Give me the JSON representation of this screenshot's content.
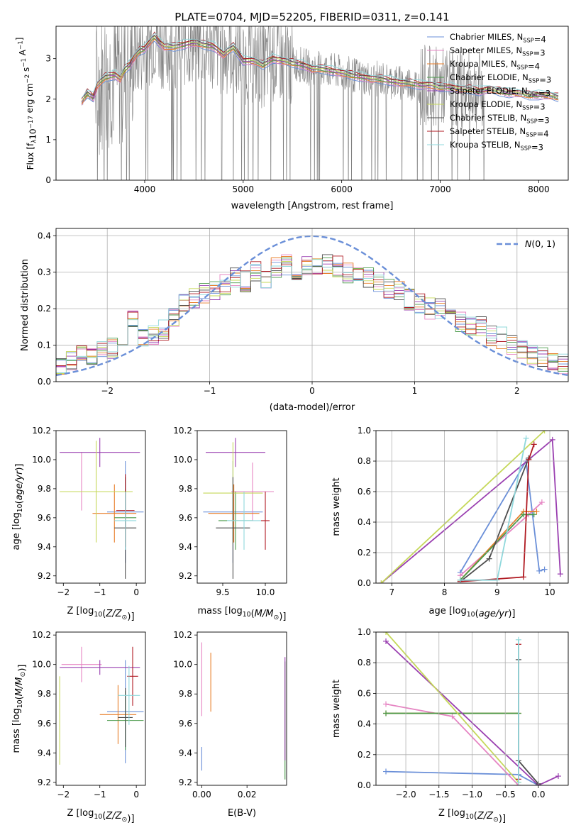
{
  "figure": {
    "title": "PLATE=0704, MJD=52205, FIBERID=0311, z=0.141"
  },
  "series_colors": [
    "#6a8fd8",
    "#e685c3",
    "#e87e29",
    "#4a9a4a",
    "#9a3fb0",
    "#c5d85a",
    "#4d4d4d",
    "#b01a22",
    "#8fd8dc"
  ],
  "chart_data": [
    {
      "id": "spectrum",
      "type": "line",
      "xlabel": "wavelength [Angstrom, rest frame]",
      "ylabel": "Flux [f_λ 10^-17 erg cm^-2 s^-1 A^-1]",
      "xlim": [
        3100,
        8300
      ],
      "ylim": [
        0,
        3.8
      ],
      "xticks": [
        4000,
        5000,
        6000,
        7000,
        8000
      ],
      "yticks": [
        0,
        1,
        2,
        3
      ],
      "grid": false,
      "legend_position": "right",
      "legend": [
        "Chabrier MILES, N_SSP=4",
        "Salpeter MILES, N_SSP=3",
        "Kroupa MILES, N_SSP=4",
        "Chabrier ELODIE, N_SSP=3",
        "Salpeter ELODIE, N_SSP=3",
        "Kroupa ELODIE, N_SSP=3",
        "Chabrier STELIB, N_SSP=3",
        "Salpeter STELIB, N_SSP=4",
        "Kroupa STELIB, N_SSP=3"
      ],
      "model_points": {
        "x": [
          3360,
          3420,
          3480,
          3520,
          3600,
          3700,
          3750,
          3800,
          3850,
          3900,
          3950,
          4000,
          4050,
          4100,
          4150,
          4200,
          4300,
          4400,
          4500,
          4600,
          4700,
          4800,
          4900,
          5000,
          5100,
          5200,
          5300,
          5400,
          5500,
          5600,
          5700,
          5800,
          5900,
          6000,
          6100,
          6200,
          6300,
          6400,
          6500,
          6600,
          6700,
          6800,
          6900,
          7000,
          7100,
          7200,
          7300,
          7400,
          7500,
          7600,
          7700,
          7800,
          7900,
          8000,
          8100,
          8200
        ],
        "y": [
          1.95,
          2.15,
          2.05,
          2.35,
          2.55,
          2.6,
          2.5,
          2.75,
          2.85,
          3.05,
          3.2,
          3.25,
          3.4,
          3.55,
          3.4,
          3.3,
          3.3,
          3.35,
          3.4,
          3.35,
          3.3,
          3.1,
          3.3,
          2.95,
          2.95,
          2.85,
          3.0,
          2.95,
          2.9,
          2.85,
          2.75,
          2.75,
          2.7,
          2.65,
          2.6,
          2.55,
          2.5,
          2.5,
          2.45,
          2.4,
          2.4,
          2.35,
          2.35,
          2.3,
          2.3,
          2.25,
          2.25,
          2.2,
          2.25,
          2.2,
          2.15,
          2.15,
          2.1,
          2.1,
          2.1,
          2.05
        ]
      }
    },
    {
      "id": "residuals",
      "type": "line",
      "xlabel": "(data-model)/error",
      "ylabel": "Normed distribution",
      "xlim": [
        -2.5,
        2.5
      ],
      "ylim": [
        0,
        0.42
      ],
      "xticks": [
        -2,
        -1,
        0,
        1,
        2
      ],
      "yticks": [
        0.0,
        0.1,
        0.2,
        0.3,
        0.4
      ],
      "grid": true,
      "legend_position": "top-right",
      "legend": [
        "N(0,1)"
      ],
      "bin_centers": [
        -2.45,
        -2.35,
        -2.25,
        -2.15,
        -2.05,
        -1.95,
        -1.85,
        -1.75,
        -1.65,
        -1.55,
        -1.45,
        -1.35,
        -1.25,
        -1.15,
        -1.05,
        -0.95,
        -0.85,
        -0.75,
        -0.65,
        -0.55,
        -0.45,
        -0.35,
        -0.25,
        -0.15,
        -0.05,
        0.05,
        0.15,
        0.25,
        0.35,
        0.45,
        0.55,
        0.65,
        0.75,
        0.85,
        0.95,
        1.05,
        1.15,
        1.25,
        1.35,
        1.45,
        1.55,
        1.65,
        1.75,
        1.85,
        1.95,
        2.05,
        2.15,
        2.25,
        2.35,
        2.45
      ],
      "bin_values": [
        0.05,
        0.055,
        0.07,
        0.075,
        0.085,
        0.09,
        0.12,
        0.165,
        0.125,
        0.13,
        0.14,
        0.175,
        0.21,
        0.23,
        0.24,
        0.245,
        0.265,
        0.285,
        0.275,
        0.3,
        0.28,
        0.31,
        0.32,
        0.305,
        0.32,
        0.315,
        0.325,
        0.315,
        0.3,
        0.29,
        0.285,
        0.275,
        0.255,
        0.245,
        0.225,
        0.215,
        0.2,
        0.2,
        0.175,
        0.165,
        0.155,
        0.15,
        0.125,
        0.12,
        0.1,
        0.085,
        0.075,
        0.065,
        0.05,
        0.05
      ]
    },
    {
      "id": "z-vs-age",
      "type": "scatter",
      "xlabel": "Z [log10(Z/Z☉)]",
      "ylabel": "age  [log10(age/yr)]",
      "xlim": [
        -2.2,
        0.25
      ],
      "ylim": [
        9.15,
        10.2
      ],
      "xticks": [
        -2,
        -1,
        0
      ],
      "yticks": [
        9.2,
        9.4,
        9.6,
        9.8,
        10.0,
        10.2
      ],
      "points": [
        {
          "x": -0.3,
          "y": 9.64,
          "xerr": 0.5,
          "yerr": 0.35
        },
        {
          "x": -1.5,
          "y": 9.85,
          "xerr": 0.0,
          "yerr": 0.2
        },
        {
          "x": -0.6,
          "y": 9.63,
          "xerr": 0.6,
          "yerr": 0.2
        },
        {
          "x": -0.3,
          "y": 9.6,
          "xerr": 0.3,
          "yerr": 0.2
        },
        {
          "x": -1.0,
          "y": 10.05,
          "xerr": 1.1,
          "yerr": 0.1
        },
        {
          "x": -1.1,
          "y": 9.78,
          "xerr": 1.0,
          "yerr": 0.35
        },
        {
          "x": -0.3,
          "y": 9.53,
          "xerr": 0.3,
          "yerr": 0.35
        },
        {
          "x": -0.3,
          "y": 9.65,
          "xerr": 0.25,
          "yerr": 0.25
        },
        {
          "x": -0.3,
          "y": 9.58,
          "xerr": 0.3,
          "yerr": 0.2
        }
      ]
    },
    {
      "id": "mass-vs-age",
      "type": "scatter",
      "xlabel": "mass [log10(M/M☉)]",
      "ylabel": "",
      "xlim": [
        9.2,
        10.25
      ],
      "ylim": [
        9.15,
        10.2
      ],
      "xticks": [
        9.5,
        10.0
      ],
      "yticks": [
        9.2,
        9.4,
        9.6,
        9.8,
        10.0,
        10.2
      ],
      "points": [
        {
          "x": 9.62,
          "y": 9.64,
          "xerr": 0.35,
          "yerr": 0.35
        },
        {
          "x": 9.85,
          "y": 9.78,
          "xerr": 0.25,
          "yerr": 0.2
        },
        {
          "x": 9.63,
          "y": 9.63,
          "xerr": 0.3,
          "yerr": 0.2
        },
        {
          "x": 9.65,
          "y": 9.58,
          "xerr": 0.2,
          "yerr": 0.2
        },
        {
          "x": 9.65,
          "y": 10.05,
          "xerr": 0.35,
          "yerr": 0.1
        },
        {
          "x": 9.62,
          "y": 9.77,
          "xerr": 0.35,
          "yerr": 0.35
        },
        {
          "x": 9.62,
          "y": 9.53,
          "xerr": 0.2,
          "yerr": 0.35
        },
        {
          "x": 10.0,
          "y": 9.58,
          "xerr": 0.05,
          "yerr": 0.2
        },
        {
          "x": 9.75,
          "y": 9.58,
          "xerr": 0.2,
          "yerr": 0.2
        }
      ]
    },
    {
      "id": "age-vs-mass-weight",
      "type": "line",
      "xlabel": "age  [log10(age/yr)]",
      "ylabel": "mass weight",
      "xlim": [
        6.7,
        10.35
      ],
      "ylim": [
        0,
        1.0
      ],
      "xticks": [
        7,
        8,
        9,
        10
      ],
      "yticks": [
        0.0,
        0.2,
        0.4,
        0.6,
        0.8,
        1.0
      ],
      "grid": true,
      "series": [
        {
          "x": [
            8.3,
            9.55,
            9.8,
            9.9
          ],
          "y": [
            0.07,
            0.8,
            0.08,
            0.09
          ]
        },
        {
          "x": [
            8.3,
            9.6,
            9.85
          ],
          "y": [
            0.05,
            0.45,
            0.53
          ]
        },
        {
          "x": [
            8.3,
            9.5,
            9.75
          ],
          "y": [
            0.02,
            0.47,
            0.47
          ]
        },
        {
          "x": [
            8.3,
            9.5,
            9.7
          ],
          "y": [
            0.02,
            0.45,
            0.45
          ]
        },
        {
          "x": [
            6.8,
            10.05,
            10.2
          ],
          "y": [
            0.0,
            0.94,
            0.06
          ]
        },
        {
          "x": [
            6.8,
            9.9
          ],
          "y": [
            0.0,
            1.0
          ]
        },
        {
          "x": [
            8.3,
            8.85,
            9.6
          ],
          "y": [
            0.01,
            0.16,
            0.82
          ]
        },
        {
          "x": [
            8.3,
            9.5,
            9.6,
            9.7
          ],
          "y": [
            0.01,
            0.04,
            0.81,
            0.91
          ]
        },
        {
          "x": [
            8.3,
            9.0,
            9.55
          ],
          "y": [
            0.02,
            0.02,
            0.95
          ]
        }
      ]
    },
    {
      "id": "z-vs-mass",
      "type": "scatter",
      "xlabel": "Z [log10(Z/Z☉)]",
      "ylabel": "mass [log10(M/M☉)]",
      "xlim": [
        -2.2,
        0.25
      ],
      "ylim": [
        9.18,
        10.22
      ],
      "xticks": [
        -2,
        -1,
        0
      ],
      "yticks": [
        9.2,
        9.4,
        9.6,
        9.8,
        10.0,
        10.2
      ],
      "points": [
        {
          "x": -0.3,
          "y": 9.68,
          "xerr": 0.5,
          "yerr": 0.35
        },
        {
          "x": -1.5,
          "y": 10.0,
          "xerr": 0.55,
          "yerr": 0.12
        },
        {
          "x": -0.5,
          "y": 9.66,
          "xerr": 0.5,
          "yerr": 0.2
        },
        {
          "x": -0.3,
          "y": 9.62,
          "xerr": 0.5,
          "yerr": 0.2
        },
        {
          "x": -1.0,
          "y": 9.98,
          "xerr": 1.1,
          "yerr": 0.05
        },
        {
          "x": -2.1,
          "y": 9.62,
          "xerr": 0.0,
          "yerr": 0.3
        },
        {
          "x": -0.3,
          "y": 9.64,
          "xerr": 0.2,
          "yerr": 0.2
        },
        {
          "x": -0.1,
          "y": 9.92,
          "xerr": 0.15,
          "yerr": 0.2
        },
        {
          "x": -0.2,
          "y": 9.79,
          "xerr": 0.3,
          "yerr": 0.2
        }
      ]
    },
    {
      "id": "ebv-vs-mass",
      "type": "scatter",
      "xlabel": "E(B-V)",
      "ylabel": "",
      "xlim": [
        -0.002,
        0.0375
      ],
      "ylim": [
        9.18,
        10.22
      ],
      "xticks": [
        0.0,
        0.02
      ],
      "yticks": [
        9.2,
        9.4,
        9.6,
        9.8,
        10.0,
        10.2
      ],
      "points": [
        {
          "x": 0.0,
          "y": 9.36,
          "yerr": 0.08
        },
        {
          "x": 0.0,
          "y": 9.9,
          "yerr": 0.25
        },
        {
          "x": 0.004,
          "y": 9.88,
          "yerr": 0.2
        },
        {
          "x": 0.0368,
          "y": 9.62,
          "yerr": 0.4
        },
        {
          "x": 0.0368,
          "y": 9.7,
          "yerr": 0.35
        }
      ]
    },
    {
      "id": "z-vs-mass-weight",
      "type": "line",
      "xlabel": "Z [log10(Z/Z☉)]",
      "ylabel": "mass weight",
      "xlim": [
        -2.45,
        0.45
      ],
      "ylim": [
        0,
        1.0
      ],
      "xticks": [
        -2.0,
        -1.5,
        -1.0,
        -0.5,
        0.0
      ],
      "yticks": [
        0.0,
        0.2,
        0.4,
        0.6,
        0.8,
        1.0
      ],
      "grid": true,
      "series": [
        {
          "x": [
            -2.3,
            -0.3,
            0.0
          ],
          "y": [
            0.09,
            0.07,
            0.0
          ]
        },
        {
          "x": [
            -2.3,
            -1.3,
            -0.3
          ],
          "y": [
            0.53,
            0.45,
            0.0
          ]
        },
        {
          "x": [
            -2.3,
            -0.3
          ],
          "y": [
            0.47,
            0.47
          ]
        },
        {
          "x": [
            -2.3,
            -0.3
          ],
          "y": [
            0.47,
            0.47
          ]
        },
        {
          "x": [
            -2.3,
            0.0,
            0.3
          ],
          "y": [
            0.94,
            0.0,
            0.06
          ]
        },
        {
          "x": [
            -2.3,
            -0.3
          ],
          "y": [
            1.0,
            0.02
          ]
        },
        {
          "x": [
            -0.3,
            -0.3,
            0.0
          ],
          "y": [
            0.82,
            0.16,
            0.01
          ]
        },
        {
          "x": [
            -0.3,
            -0.3
          ],
          "y": [
            0.92,
            0.04
          ]
        },
        {
          "x": [
            -0.3,
            -0.3
          ],
          "y": [
            0.95,
            0.02
          ]
        }
      ]
    }
  ]
}
